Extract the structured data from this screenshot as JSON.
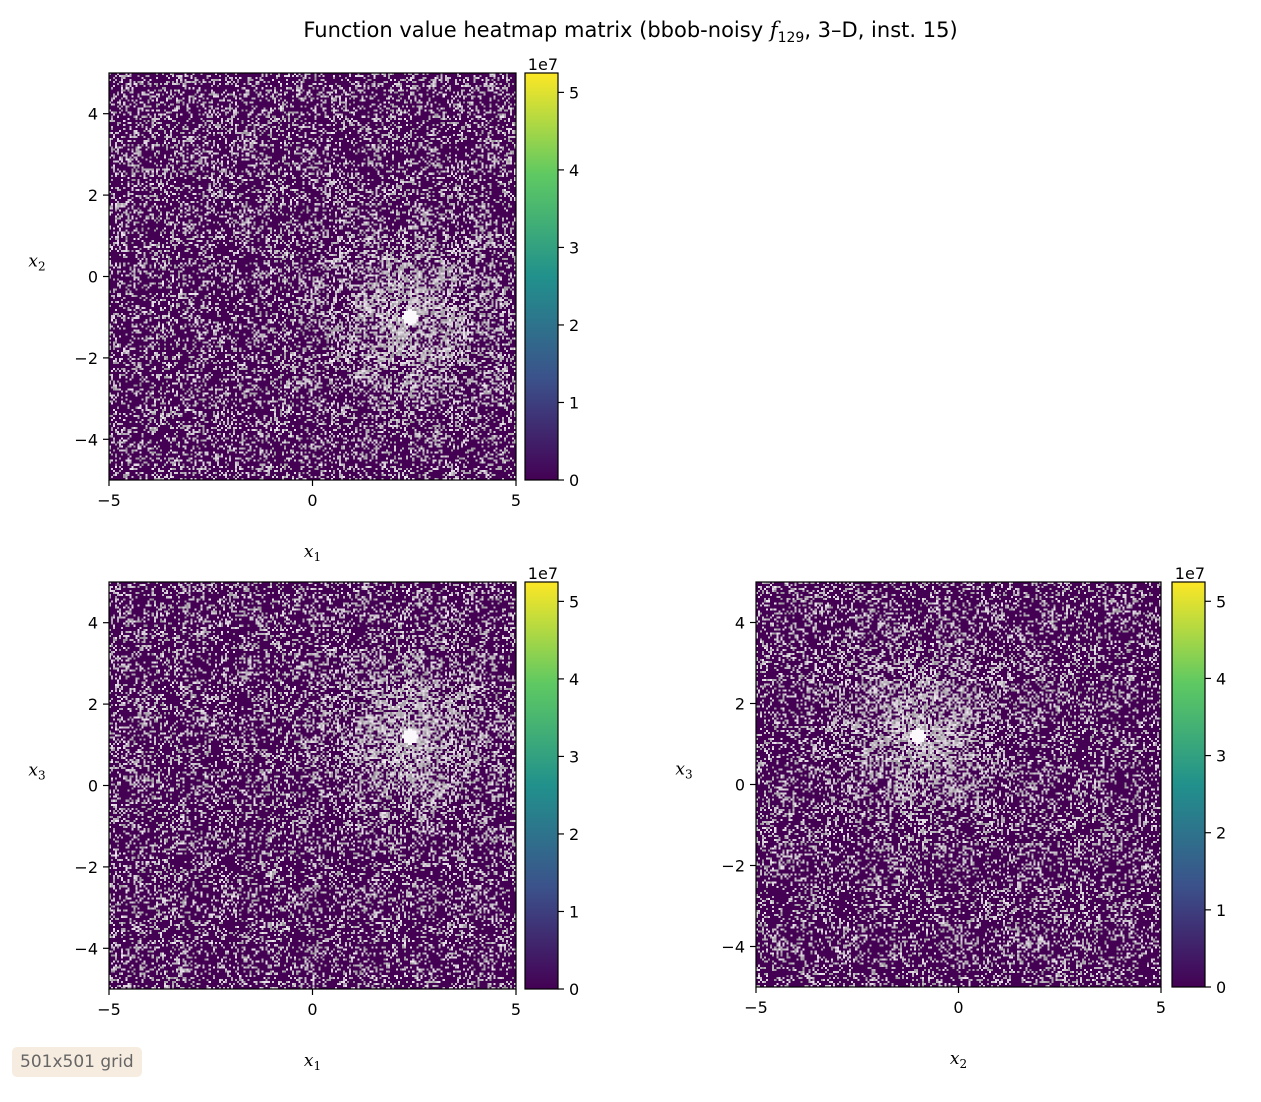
{
  "chart_data": [
    {
      "type": "heatmap",
      "panel": "x1-x2",
      "xlabel": "x1",
      "ylabel": "x2",
      "xlim": [
        -5,
        5
      ],
      "ylim": [
        -5,
        5
      ],
      "xticks": [
        -5,
        0,
        5
      ],
      "yticks": [
        -4,
        -2,
        0,
        2,
        4
      ],
      "optimum_marker": [
        2.4,
        -1.0
      ],
      "colorbar": {
        "ticks": [
          0,
          1,
          2,
          3,
          4,
          5
        ],
        "range": [
          0,
          5.25
        ],
        "exponent_label": "1e7",
        "colormap": "viridis"
      }
    },
    {
      "type": "heatmap",
      "panel": "x1-x3",
      "xlabel": "x1",
      "ylabel": "x3",
      "xlim": [
        -5,
        5
      ],
      "ylim": [
        -5,
        5
      ],
      "xticks": [
        -5,
        0,
        5
      ],
      "yticks": [
        -4,
        -2,
        0,
        2,
        4
      ],
      "optimum_marker": [
        2.4,
        1.2
      ],
      "colorbar": {
        "ticks": [
          0,
          1,
          2,
          3,
          4,
          5
        ],
        "range": [
          0,
          5.25
        ],
        "exponent_label": "1e7",
        "colormap": "viridis"
      }
    },
    {
      "type": "heatmap",
      "panel": "x2-x3",
      "xlabel": "x2",
      "ylabel": "x3",
      "xlim": [
        -5,
        5
      ],
      "ylim": [
        -5,
        5
      ],
      "xticks": [
        -5,
        0,
        5
      ],
      "yticks": [
        -4,
        -2,
        0,
        2,
        4
      ],
      "optimum_marker": [
        -1.0,
        1.2
      ],
      "colorbar": {
        "ticks": [
          0,
          1,
          2,
          3,
          4,
          5
        ],
        "range": [
          0,
          5.25
        ],
        "exponent_label": "1e7",
        "colormap": "viridis"
      }
    }
  ],
  "figure": {
    "title_prefix": "Function value heatmap matrix (bbob-noisy ",
    "title_f": "f",
    "title_sub": "129",
    "title_suffix": ", 3–D, inst. 15)",
    "badge": "501x501 grid"
  },
  "colors": {
    "low": "#440154",
    "noise": "#a89aa8",
    "viridis": [
      "#440154",
      "#3b528b",
      "#21918c",
      "#5ec962",
      "#fde725"
    ]
  }
}
